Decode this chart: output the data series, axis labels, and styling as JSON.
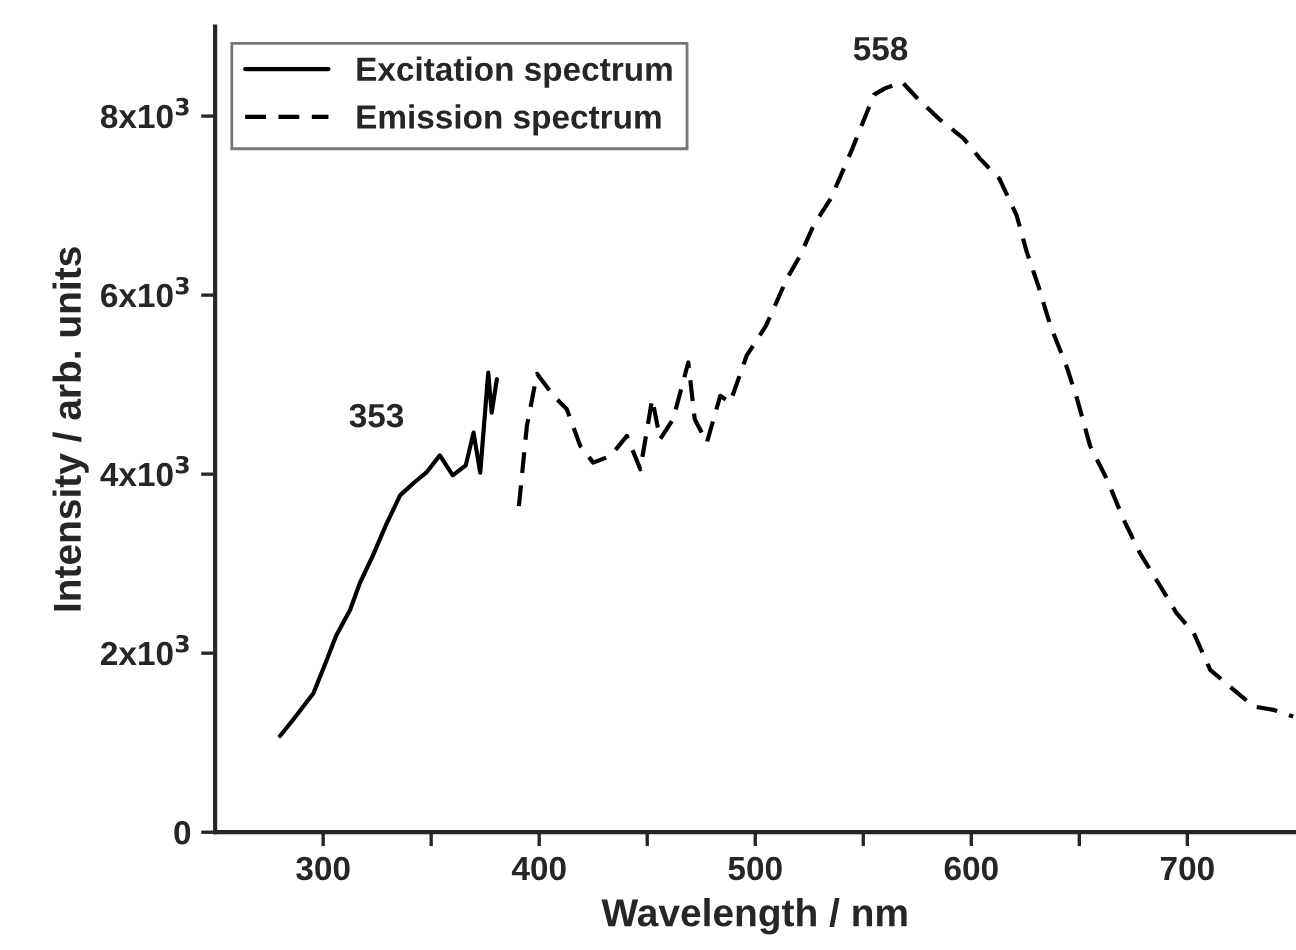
{
  "chart_data": {
    "type": "line",
    "xlabel": "Wavelength / nm",
    "ylabel": "Intensity / arb. units",
    "xlim": [
      250,
      750
    ],
    "ylim": [
      0,
      9000
    ],
    "xticks": [
      300,
      {
        "value": 350,
        "label": null
      },
      400,
      {
        "value": 450,
        "label": null
      },
      500,
      {
        "value": 550,
        "label": null
      },
      600,
      {
        "value": 650,
        "label": null
      },
      700
    ],
    "yticks": [
      0,
      {
        "value": 2000,
        "label": "2x10$^{3}$"
      },
      {
        "value": 4000,
        "label": "4x10$^{3}$"
      },
      {
        "value": 6000,
        "label": "6x10$^{3}$"
      },
      {
        "value": 8000,
        "label": "8x10$^{3}$"
      }
    ],
    "legend": "top left",
    "grid": false,
    "series": [
      {
        "name": "Excitation spectrum",
        "color": "#000000",
        "line_style": "solid",
        "x": [
          280,
          286,
          295.5,
          301.7,
          306,
          312.5,
          317,
          323,
          329,
          335.6,
          342,
          347.7,
          354,
          360,
          366,
          369.6,
          372.7,
          376.4,
          378,
          380.4
        ],
        "values": [
          1075,
          1254,
          1552,
          1926,
          2195,
          2486,
          2784,
          3090,
          3427,
          3763,
          3904,
          4016,
          4210,
          3987,
          4098,
          4464,
          4016,
          5135,
          4688,
          5061
        ]
      },
      {
        "name": "Emission spectrum",
        "color": "#000000",
        "line_style": "dashed",
        "x": [
          390.6,
          394.3,
          399,
          406.7,
          412.8,
          419,
          425,
          433,
          440.6,
          446.8,
          452.3,
          456,
          462,
          469,
          472,
          477.6,
          483.8,
          488.4,
          496,
          505,
          514.6,
          520.8,
          527,
          535,
          545,
          555,
          560,
          568,
          575,
          585,
          596.5,
          604,
          613,
          621,
          625.7,
          631,
          636.6,
          644,
          649,
          655,
          662.8,
          670.5,
          678,
          687.5,
          695,
          703,
          710.6,
          721.5,
          730.7,
          740,
          749
        ],
        "values": [
          3643,
          4539,
          5121,
          4875,
          4726,
          4316,
          4129,
          4203,
          4427,
          4054,
          4838,
          4390,
          4614,
          5248,
          4614,
          4352,
          4875,
          4800,
          5323,
          5659,
          6181,
          6443,
          6779,
          7080,
          7640,
          8240,
          8310,
          8380,
          8200,
          7970,
          7749,
          7525,
          7301,
          6890,
          6480,
          6107,
          5659,
          5211,
          4838,
          4316,
          3942,
          3494,
          3120,
          2748,
          2448,
          2224,
          1814,
          1590,
          1404,
          1366,
          1292
        ]
      }
    ],
    "annotations": [
      {
        "text": "353",
        "x": 353,
        "y": 4200
      },
      {
        "text": "558",
        "x": 558,
        "y": 8300
      }
    ]
  }
}
